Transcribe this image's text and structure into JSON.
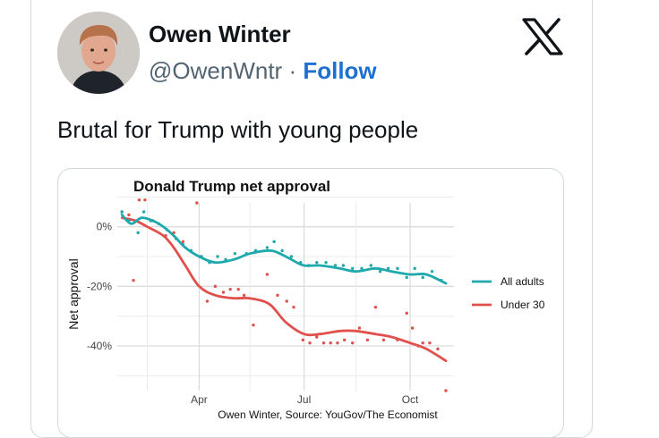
{
  "tweet": {
    "author_name": "Owen Winter",
    "handle": "@OwenWntr",
    "separator": "·",
    "follow_label": "Follow",
    "text": "Brutal for Trump with young people",
    "icons": {
      "avatar": "avatar-photo",
      "logo": "x-logo-icon"
    }
  },
  "chart_data": {
    "type": "line",
    "title": "Donald Trump net approval",
    "ylabel": "Net approval",
    "caption": "Owen Winter, Source: YouGov/The Economist",
    "x_ticks": [
      "Apr",
      "Jul",
      "Oct"
    ],
    "y_ticks": [
      "0%",
      "-20%",
      "-40%"
    ],
    "ylim": [
      -55,
      8
    ],
    "grid": true,
    "legend_position": "right",
    "series": [
      {
        "name": "All adults",
        "color": "#1fa9ad",
        "smooth": [
          [
            "2025-01-24",
            4
          ],
          [
            "2025-02-01",
            1
          ],
          [
            "2025-02-10",
            3
          ],
          [
            "2025-02-20",
            2
          ],
          [
            "2025-03-01",
            0
          ],
          [
            "2025-03-10",
            -3
          ],
          [
            "2025-03-20",
            -7
          ],
          [
            "2025-04-01",
            -10
          ],
          [
            "2025-04-15",
            -12
          ],
          [
            "2025-05-01",
            -11
          ],
          [
            "2025-05-15",
            -9
          ],
          [
            "2025-06-01",
            -8
          ],
          [
            "2025-06-10",
            -9
          ],
          [
            "2025-06-20",
            -11
          ],
          [
            "2025-07-01",
            -13
          ],
          [
            "2025-07-15",
            -13
          ],
          [
            "2025-08-01",
            -14
          ],
          [
            "2025-08-15",
            -15
          ],
          [
            "2025-09-01",
            -14
          ],
          [
            "2025-09-15",
            -15
          ],
          [
            "2025-10-01",
            -16
          ],
          [
            "2025-10-15",
            -16
          ],
          [
            "2025-11-01",
            -19
          ]
        ],
        "points": [
          [
            "2025-01-24",
            5
          ],
          [
            "2025-01-30",
            2
          ],
          [
            "2025-02-07",
            -2
          ],
          [
            "2025-02-12",
            5
          ],
          [
            "2025-02-18",
            2
          ],
          [
            "2025-02-25",
            1
          ],
          [
            "2025-03-04",
            -1
          ],
          [
            "2025-03-12",
            -4
          ],
          [
            "2025-03-18",
            -6
          ],
          [
            "2025-03-25",
            -8
          ],
          [
            "2025-04-03",
            -10
          ],
          [
            "2025-04-10",
            -12
          ],
          [
            "2025-04-17",
            -10
          ],
          [
            "2025-04-24",
            -11
          ],
          [
            "2025-05-02",
            -9
          ],
          [
            "2025-05-12",
            -9
          ],
          [
            "2025-05-20",
            -8
          ],
          [
            "2025-05-30",
            -7
          ],
          [
            "2025-06-05",
            -5
          ],
          [
            "2025-06-12",
            -8
          ],
          [
            "2025-06-20",
            -10
          ],
          [
            "2025-06-28",
            -12
          ],
          [
            "2025-07-05",
            -13
          ],
          [
            "2025-07-12",
            -12
          ],
          [
            "2025-07-20",
            -12
          ],
          [
            "2025-07-28",
            -13
          ],
          [
            "2025-08-04",
            -13
          ],
          [
            "2025-08-12",
            -14
          ],
          [
            "2025-08-20",
            -14
          ],
          [
            "2025-08-28",
            -13
          ],
          [
            "2025-09-05",
            -15
          ],
          [
            "2025-09-12",
            -14
          ],
          [
            "2025-09-20",
            -14
          ],
          [
            "2025-09-28",
            -17
          ],
          [
            "2025-10-05",
            -14
          ],
          [
            "2025-10-12",
            -17
          ],
          [
            "2025-10-20",
            -15
          ],
          [
            "2025-10-28",
            -18
          ]
        ]
      },
      {
        "name": "Under 30",
        "color": "#e0504c",
        "smooth": [
          [
            "2025-01-24",
            3
          ],
          [
            "2025-02-05",
            2
          ],
          [
            "2025-02-15",
            0
          ],
          [
            "2025-03-01",
            -3
          ],
          [
            "2025-03-10",
            -7
          ],
          [
            "2025-03-20",
            -13
          ],
          [
            "2025-04-01",
            -20
          ],
          [
            "2025-04-15",
            -23
          ],
          [
            "2025-05-01",
            -24
          ],
          [
            "2025-05-15",
            -24
          ],
          [
            "2025-06-01",
            -26
          ],
          [
            "2025-06-15",
            -32
          ],
          [
            "2025-07-01",
            -36
          ],
          [
            "2025-07-15",
            -36
          ],
          [
            "2025-08-01",
            -35
          ],
          [
            "2025-08-15",
            -35
          ],
          [
            "2025-09-01",
            -36
          ],
          [
            "2025-09-15",
            -37
          ],
          [
            "2025-10-01",
            -39
          ],
          [
            "2025-10-15",
            -41
          ],
          [
            "2025-11-01",
            -45
          ]
        ],
        "points": [
          [
            "2025-01-24",
            5
          ],
          [
            "2025-01-30",
            4
          ],
          [
            "2025-02-03",
            -18
          ],
          [
            "2025-02-08",
            9
          ],
          [
            "2025-02-13",
            9
          ],
          [
            "2025-02-20",
            2
          ],
          [
            "2025-03-03",
            -3
          ],
          [
            "2025-03-10",
            -2
          ],
          [
            "2025-03-18",
            -5
          ],
          [
            "2025-03-30",
            8
          ],
          [
            "2025-04-02",
            -10
          ],
          [
            "2025-04-08",
            -25
          ],
          [
            "2025-04-15",
            -20
          ],
          [
            "2025-04-22",
            -22
          ],
          [
            "2025-04-28",
            -21
          ],
          [
            "2025-05-05",
            -21
          ],
          [
            "2025-05-10",
            -23
          ],
          [
            "2025-05-18",
            -33
          ],
          [
            "2025-05-30",
            -16
          ],
          [
            "2025-06-08",
            -23
          ],
          [
            "2025-06-16",
            -25
          ],
          [
            "2025-06-22",
            -27
          ],
          [
            "2025-06-30",
            -38
          ],
          [
            "2025-07-06",
            -39
          ],
          [
            "2025-07-12",
            -37
          ],
          [
            "2025-07-18",
            -39
          ],
          [
            "2025-07-24",
            -39
          ],
          [
            "2025-07-30",
            -39
          ],
          [
            "2025-08-05",
            -38
          ],
          [
            "2025-08-12",
            -39
          ],
          [
            "2025-08-18",
            -34
          ],
          [
            "2025-08-25",
            -38
          ],
          [
            "2025-09-01",
            -27
          ],
          [
            "2025-09-08",
            -38
          ],
          [
            "2025-09-20",
            -38
          ],
          [
            "2025-09-28",
            -29
          ],
          [
            "2025-10-03",
            -34
          ],
          [
            "2025-10-08",
            -40
          ],
          [
            "2025-10-12",
            -39
          ],
          [
            "2025-10-18",
            -39
          ],
          [
            "2025-10-25",
            -41
          ],
          [
            "2025-11-01",
            -55
          ]
        ]
      }
    ]
  }
}
